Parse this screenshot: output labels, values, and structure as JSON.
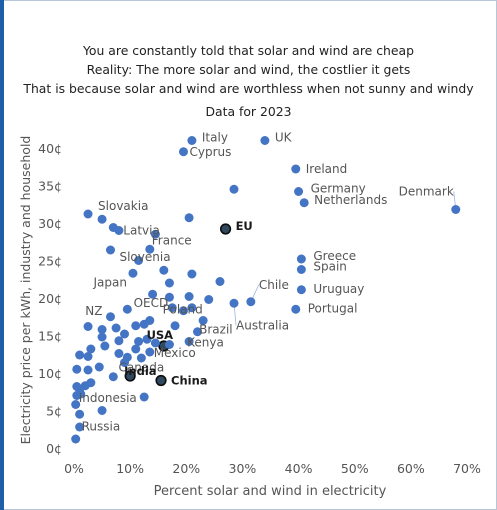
{
  "header": {
    "line1": "You are constantly told that solar and wind are cheap",
    "line2": "Reality: The more solar and wind, the costlier it gets",
    "line3": "That is because solar and wind are worthless when not sunny and windy",
    "line4": "Data for 2023"
  },
  "colors": {
    "point": "#4474c4",
    "highlight": "#30495f",
    "text": "#555555",
    "bold": "#1a1a1a",
    "leader": "#9db5d9",
    "frame_edge": "#1f5fa8"
  },
  "chart_data": {
    "type": "scatter",
    "title": "Data for 2023",
    "xlabel": "Percent solar and wind in electricity",
    "ylabel": "Electricity price per kWh, industry and household",
    "xlim": [
      0,
      70
    ],
    "ylim": [
      0,
      42
    ],
    "x_ticks": [
      "0%",
      "10%",
      "20%",
      "30%",
      "40%",
      "50%",
      "60%",
      "70%"
    ],
    "y_ticks": [
      "0¢",
      "5¢",
      "10¢",
      "15¢",
      "20¢",
      "25¢",
      "30¢",
      "35¢",
      "40¢"
    ],
    "grid": false,
    "points": [
      {
        "label": "Italy",
        "x": 21,
        "y": 41
      },
      {
        "label": "Cyprus",
        "x": 19.5,
        "y": 39.5
      },
      {
        "label": "UK",
        "x": 34,
        "y": 41
      },
      {
        "label": "Ireland",
        "x": 39.5,
        "y": 37.2
      },
      {
        "label": "Germany",
        "x": 40,
        "y": 34.2
      },
      {
        "label": "Netherlands",
        "x": 41,
        "y": 32.7
      },
      {
        "label": "Denmark",
        "x": 68,
        "y": 31.8
      },
      {
        "label": "EU",
        "x": 27,
        "y": 29.2,
        "highlight": true
      },
      {
        "label": "Slovakia",
        "x": 2.5,
        "y": 31.2
      },
      {
        "label": "Latvia",
        "x": 7,
        "y": 29.4
      },
      {
        "label": "France",
        "x": 13.5,
        "y": 26.5
      },
      {
        "label": "Slovenia",
        "x": 6.5,
        "y": 26.4
      },
      {
        "label": "Japan",
        "x": 10.5,
        "y": 23.3
      },
      {
        "label": "Greece",
        "x": 40.5,
        "y": 25.2
      },
      {
        "label": "Spain",
        "x": 40.5,
        "y": 23.8
      },
      {
        "label": "Chile",
        "x": 31.5,
        "y": 19.5
      },
      {
        "label": "Uruguay",
        "x": 40.5,
        "y": 21.1
      },
      {
        "label": "Poland",
        "x": 24,
        "y": 19.8
      },
      {
        "label": "Portugal",
        "x": 39.5,
        "y": 18.5
      },
      {
        "label": "Australia",
        "x": 28.5,
        "y": 19.3
      },
      {
        "label": "NZ",
        "x": 6.5,
        "y": 17.5
      },
      {
        "label": "OECD",
        "x": 17.5,
        "y": 18.7
      },
      {
        "label": "USA",
        "x": 16,
        "y": 13.6,
        "highlight": true
      },
      {
        "label": "Brazil",
        "x": 23,
        "y": 17
      },
      {
        "label": "Kenya",
        "x": 20.5,
        "y": 14.2
      },
      {
        "label": "Mexico",
        "x": 13.5,
        "y": 12.8
      },
      {
        "label": "Canada",
        "x": 9,
        "y": 11.4
      },
      {
        "label": "India",
        "x": 10,
        "y": 9.6,
        "highlight": true
      },
      {
        "label": "China",
        "x": 15.5,
        "y": 9,
        "highlight": true
      },
      {
        "label": "Indonesia",
        "x": 1.2,
        "y": 7.2
      },
      {
        "label": "Russia",
        "x": 1,
        "y": 4.5
      },
      {
        "label": "",
        "x": 5,
        "y": 30.5
      },
      {
        "label": "",
        "x": 8,
        "y": 29
      },
      {
        "label": "",
        "x": 28.5,
        "y": 34.5
      },
      {
        "label": "",
        "x": 20.5,
        "y": 30.7
      },
      {
        "label": "",
        "x": 14.5,
        "y": 28.5
      },
      {
        "label": "",
        "x": 11.5,
        "y": 25
      },
      {
        "label": "",
        "x": 16,
        "y": 23.7
      },
      {
        "label": "",
        "x": 17,
        "y": 22
      },
      {
        "label": "",
        "x": 21,
        "y": 23.2
      },
      {
        "label": "",
        "x": 26,
        "y": 22.2
      },
      {
        "label": "",
        "x": 14,
        "y": 20.5
      },
      {
        "label": "",
        "x": 17,
        "y": 20.1
      },
      {
        "label": "",
        "x": 20.5,
        "y": 20.2
      },
      {
        "label": "",
        "x": 19.5,
        "y": 18.3
      },
      {
        "label": "",
        "x": 21,
        "y": 18.7
      },
      {
        "label": "",
        "x": 9.5,
        "y": 18.5
      },
      {
        "label": "",
        "x": 11,
        "y": 16.3
      },
      {
        "label": "",
        "x": 12.5,
        "y": 16.5
      },
      {
        "label": "",
        "x": 2.5,
        "y": 16.2
      },
      {
        "label": "",
        "x": 5,
        "y": 15.8
      },
      {
        "label": "",
        "x": 7.5,
        "y": 16
      },
      {
        "label": "",
        "x": 13.5,
        "y": 17
      },
      {
        "label": "",
        "x": 18,
        "y": 16.3
      },
      {
        "label": "",
        "x": 22,
        "y": 15.5
      },
      {
        "label": "",
        "x": 5,
        "y": 14.8
      },
      {
        "label": "",
        "x": 8,
        "y": 14.3
      },
      {
        "label": "",
        "x": 9,
        "y": 15.2
      },
      {
        "label": "",
        "x": 11.5,
        "y": 14.2
      },
      {
        "label": "",
        "x": 14.5,
        "y": 14
      },
      {
        "label": "",
        "x": 3,
        "y": 13.2
      },
      {
        "label": "",
        "x": 5.5,
        "y": 13.6
      },
      {
        "label": "",
        "x": 11,
        "y": 13.2
      },
      {
        "label": "",
        "x": 13,
        "y": 14.5
      },
      {
        "label": "",
        "x": 17,
        "y": 13.8
      },
      {
        "label": "",
        "x": 1,
        "y": 12.4
      },
      {
        "label": "",
        "x": 2.5,
        "y": 12.2
      },
      {
        "label": "",
        "x": 8,
        "y": 12.6
      },
      {
        "label": "",
        "x": 9.5,
        "y": 12.1
      },
      {
        "label": "",
        "x": 12,
        "y": 12
      },
      {
        "label": "",
        "x": 0.5,
        "y": 10.5
      },
      {
        "label": "",
        "x": 2.5,
        "y": 10.4
      },
      {
        "label": "",
        "x": 4.5,
        "y": 10.8
      },
      {
        "label": "",
        "x": 0.5,
        "y": 8.2
      },
      {
        "label": "",
        "x": 1,
        "y": 7.8
      },
      {
        "label": "",
        "x": 2,
        "y": 8.3
      },
      {
        "label": "",
        "x": 3,
        "y": 8.7
      },
      {
        "label": "",
        "x": 0.5,
        "y": 7
      },
      {
        "label": "",
        "x": 0.3,
        "y": 5.8
      },
      {
        "label": "",
        "x": 5,
        "y": 5
      },
      {
        "label": "",
        "x": 12.5,
        "y": 6.8
      },
      {
        "label": "",
        "x": 7,
        "y": 9.5
      },
      {
        "label": "",
        "x": 1,
        "y": 2.8
      },
      {
        "label": "",
        "x": 0.3,
        "y": 1.2
      }
    ]
  }
}
